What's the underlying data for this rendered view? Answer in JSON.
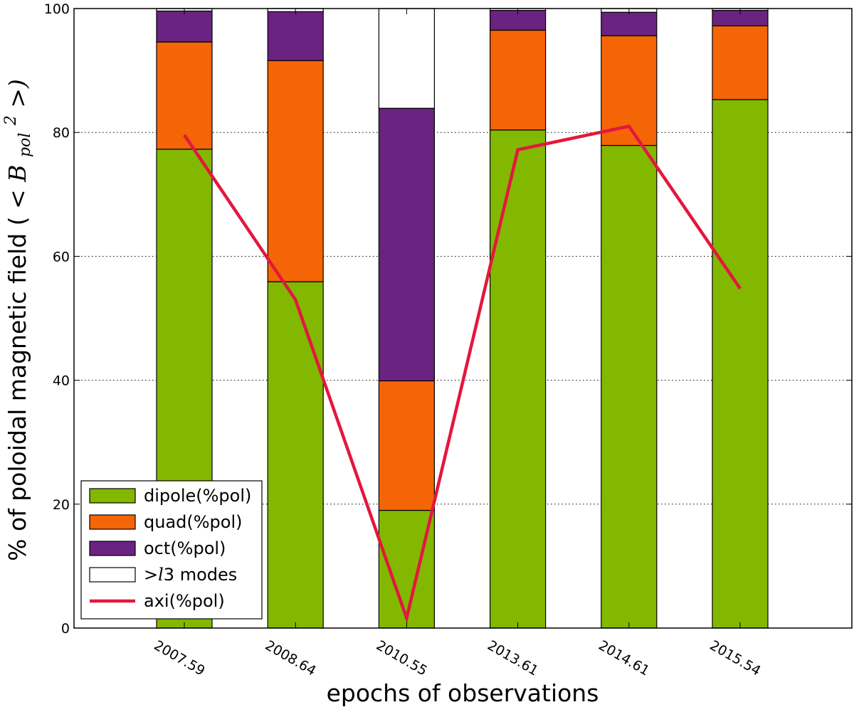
{
  "chart_data": {
    "type": "bar",
    "stacked": true,
    "categories": [
      "2007.59",
      "2008.64",
      "2010.55",
      "2013.61",
      "2014.61",
      "2015.54"
    ],
    "series": [
      {
        "name": "dipole(%pol)",
        "kind": "bar",
        "color": "#82b800",
        "values": [
          77.3,
          55.9,
          19.0,
          80.4,
          77.9,
          85.3
        ]
      },
      {
        "name": "quad(%pol)",
        "kind": "bar",
        "color": "#f46506",
        "values": [
          17.3,
          35.7,
          20.9,
          16.1,
          17.7,
          11.9
        ]
      },
      {
        "name": "oct(%pol)",
        "kind": "bar",
        "color": "#6a2380",
        "values": [
          5.0,
          7.9,
          44.0,
          3.2,
          3.8,
          2.5
        ]
      },
      {
        "name": ">l3 modes",
        "kind": "bar",
        "color": "#ffffff",
        "values": [
          0.4,
          0.5,
          16.1,
          0.3,
          0.6,
          0.3
        ]
      },
      {
        "name": "axi(%pol)",
        "kind": "line",
        "color": "#e3173f",
        "values": [
          79.6,
          53.0,
          1.6,
          77.2,
          81.0,
          54.8
        ]
      }
    ],
    "title": "",
    "xlabel": "epochs of observations",
    "ylabel_text": "% of poloidal magnetic field (",
    "ylabel_math": {
      "open": "<",
      "base": "B",
      "sub": "pol",
      "sup": "2",
      "close": ">)"
    },
    "ylim": [
      0,
      100
    ],
    "yticks": [
      "0",
      "20",
      "40",
      "60",
      "80",
      "100"
    ],
    "grid": true,
    "legend": {
      "position": "bottom-left",
      "entries": [
        {
          "label": "dipole(%pol)",
          "swatch": "bar",
          "color": "#82b800"
        },
        {
          "label": "quad(%pol)",
          "swatch": "bar",
          "color": "#f46506"
        },
        {
          "label": "oct(%pol)",
          "swatch": "bar",
          "color": "#6a2380"
        },
        {
          "label": ">l3 modes",
          "swatch": "bar",
          "color": "#ffffff",
          "prefix": ">",
          "italic": "l",
          "suffix": "3 modes"
        },
        {
          "label": "axi(%pol)",
          "swatch": "line",
          "color": "#e3173f"
        }
      ]
    }
  }
}
